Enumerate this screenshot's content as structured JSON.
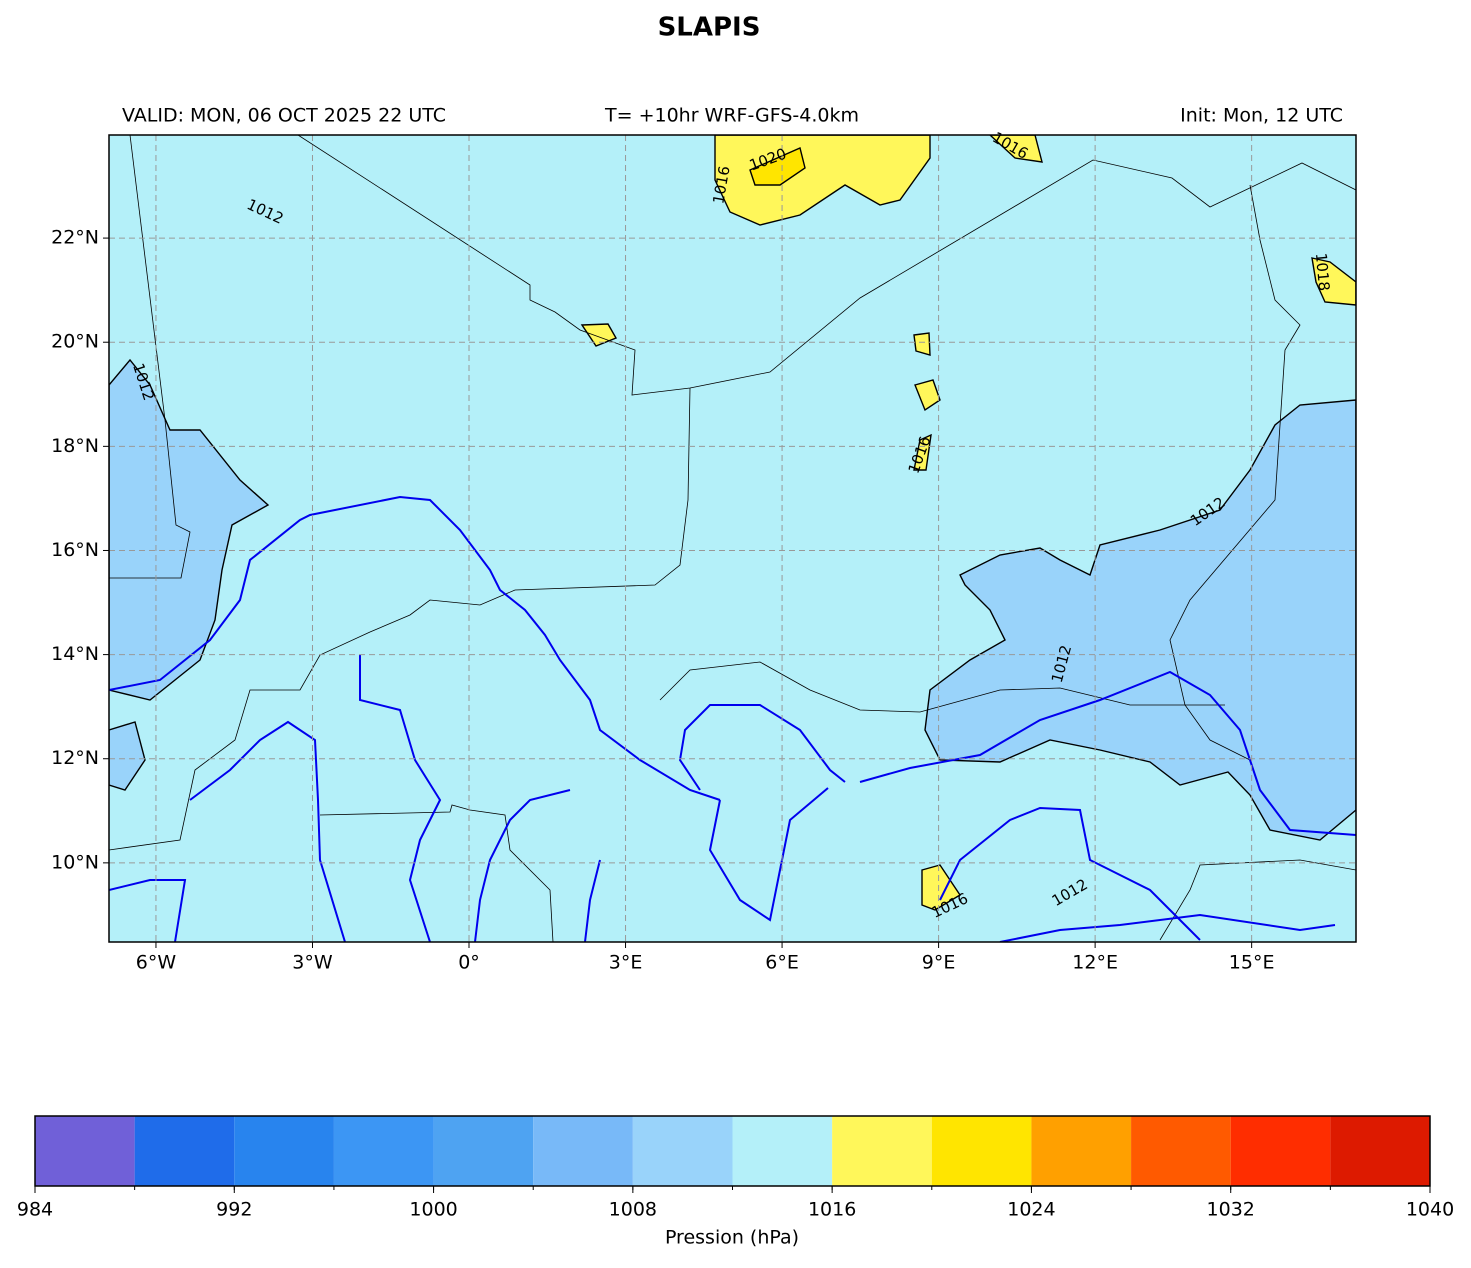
{
  "title": "SLAPIS",
  "header": {
    "left": "VALID: MON, 06 OCT 2025 22 UTC",
    "center": "T= +10hr WRF-GFS-4.0km",
    "right": "Init: Mon, 12 UTC"
  },
  "map": {
    "xlim": [
      -6.9,
      17.0
    ],
    "ylim": [
      8.48,
      23.98
    ],
    "grid": true,
    "xticks": [
      {
        "value": -6,
        "label": "6°W"
      },
      {
        "value": -3,
        "label": "3°W"
      },
      {
        "value": 0,
        "label": "0°"
      },
      {
        "value": 3,
        "label": "3°E"
      },
      {
        "value": 6,
        "label": "6°E"
      },
      {
        "value": 9,
        "label": "9°E"
      },
      {
        "value": 12,
        "label": "12°E"
      },
      {
        "value": 15,
        "label": "15°E"
      }
    ],
    "yticks": [
      {
        "value": 10,
        "label": "10°N"
      },
      {
        "value": 12,
        "label": "12°N"
      },
      {
        "value": 14,
        "label": "14°N"
      },
      {
        "value": 16,
        "label": "16°N"
      },
      {
        "value": 18,
        "label": "18°N"
      },
      {
        "value": 20,
        "label": "20°N"
      },
      {
        "value": 22,
        "label": "22°N"
      }
    ],
    "contour_labels": [
      "1012",
      "1012",
      "1020",
      "1016",
      "1016",
      "1016",
      "1018",
      "1012",
      "1012",
      "1016",
      "1012"
    ]
  },
  "colorbar": {
    "label": "Pression (hPa)",
    "bounds": [
      984,
      988,
      992,
      996,
      1000,
      1004,
      1008,
      1012,
      1016,
      1020,
      1024,
      1028,
      1032,
      1036,
      1040
    ],
    "colors": [
      "#7060d8",
      "#1f6cea",
      "#2884ee",
      "#3c96f4",
      "#4ea3f2",
      "#78b9f8",
      "#99d3fa",
      "#b4f0f9",
      "#fff75a",
      "#ffe500",
      "#ffa000",
      "#ff5a00",
      "#ff2d00",
      "#dd1a00"
    ],
    "ticks": [
      984,
      992,
      1000,
      1008,
      1016,
      1024,
      1032,
      1040
    ]
  }
}
